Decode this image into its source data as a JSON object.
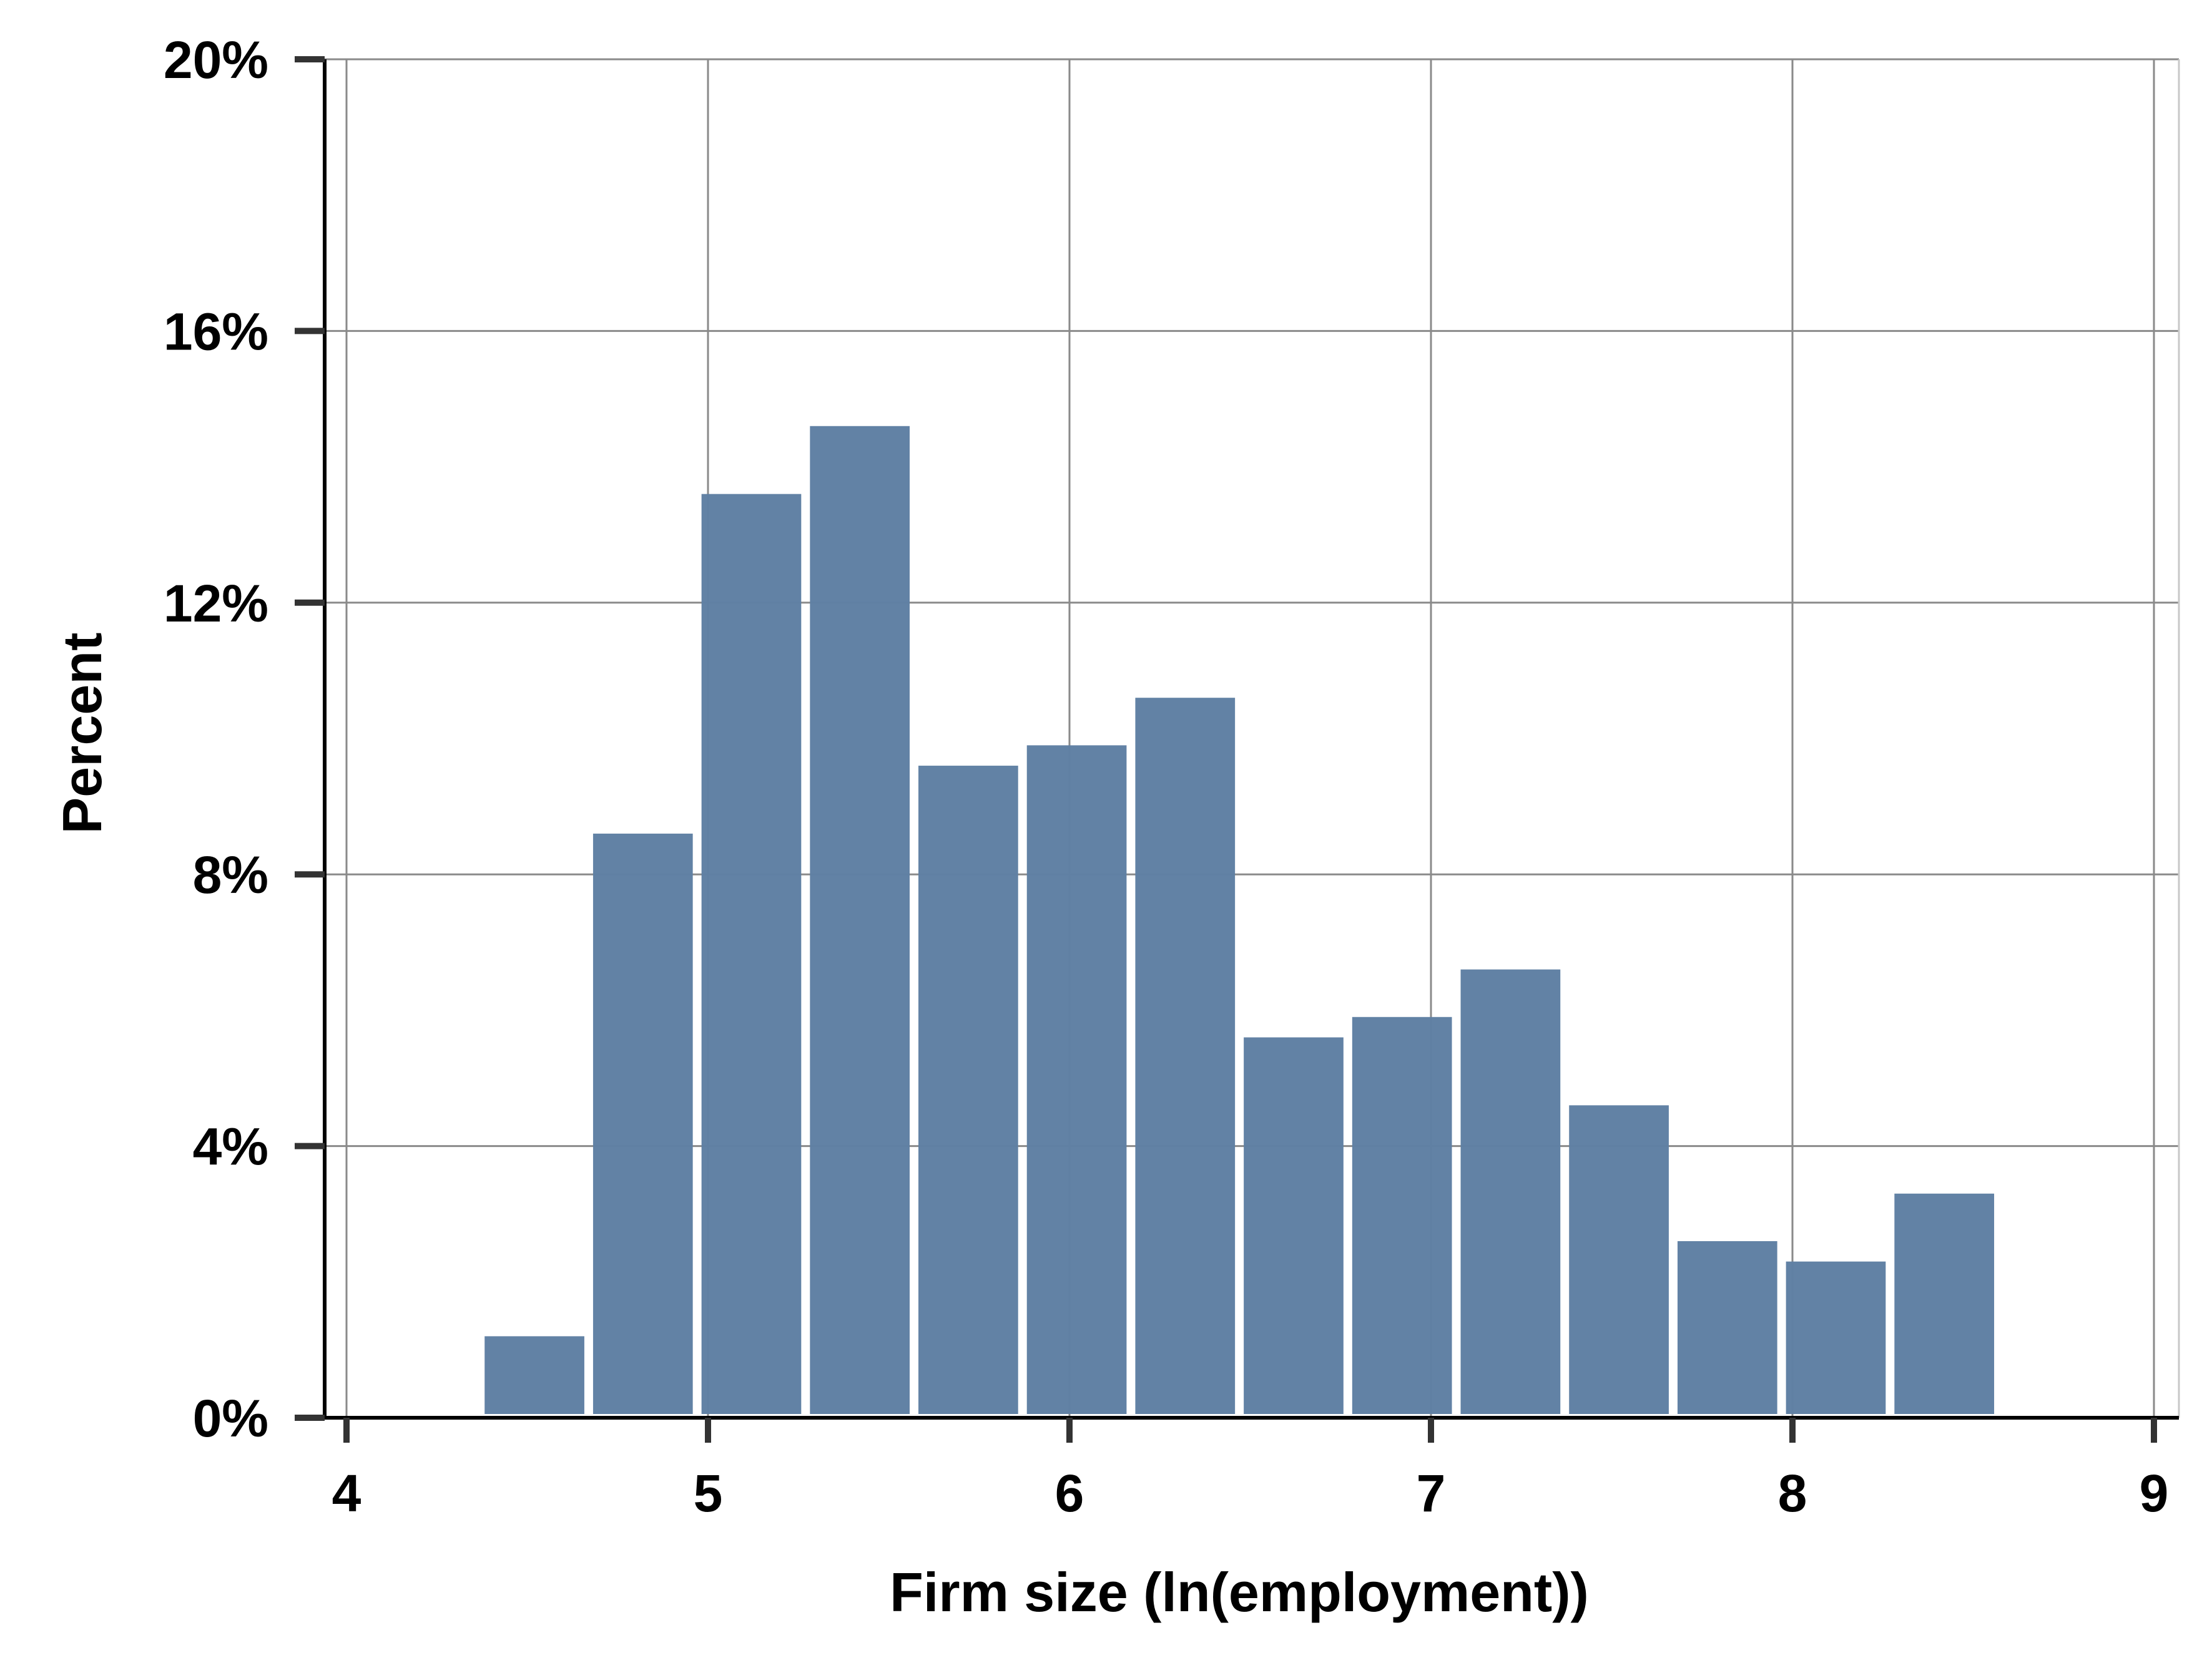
{
  "chart_data": {
    "type": "bar",
    "xlabel": "Firm size (ln(employment))",
    "ylabel": "Percent",
    "xlim": [
      4,
      9
    ],
    "ylim": [
      0,
      20
    ],
    "x_ticks": [
      4,
      5,
      6,
      7,
      8,
      9
    ],
    "y_ticks": [
      0,
      4,
      8,
      12,
      16,
      20
    ],
    "y_tick_labels": [
      "0%",
      "4%",
      "8%",
      "12%",
      "16%",
      "20%"
    ],
    "x_tick_labels": [
      "4",
      "5",
      "6",
      "7",
      "8",
      "9"
    ],
    "grid": true,
    "bar_color": "#5f7fa3",
    "bins": [
      {
        "x0": 4.37,
        "x1": 4.67,
        "value": 1.2
      },
      {
        "x0": 4.67,
        "x1": 4.97,
        "value": 8.6
      },
      {
        "x0": 4.97,
        "x1": 5.27,
        "value": 13.6
      },
      {
        "x0": 5.27,
        "x1": 5.57,
        "value": 14.6
      },
      {
        "x0": 5.57,
        "x1": 5.87,
        "value": 9.6
      },
      {
        "x0": 5.87,
        "x1": 6.17,
        "value": 9.9
      },
      {
        "x0": 6.17,
        "x1": 6.47,
        "value": 10.6
      },
      {
        "x0": 6.47,
        "x1": 6.77,
        "value": 5.6
      },
      {
        "x0": 6.77,
        "x1": 7.07,
        "value": 5.9
      },
      {
        "x0": 7.07,
        "x1": 7.37,
        "value": 6.6
      },
      {
        "x0": 7.37,
        "x1": 7.67,
        "value": 4.6
      },
      {
        "x0": 7.67,
        "x1": 7.97,
        "value": 2.6
      },
      {
        "x0": 7.97,
        "x1": 8.27,
        "value": 2.3
      },
      {
        "x0": 8.27,
        "x1": 8.57,
        "value": 3.3
      }
    ]
  }
}
